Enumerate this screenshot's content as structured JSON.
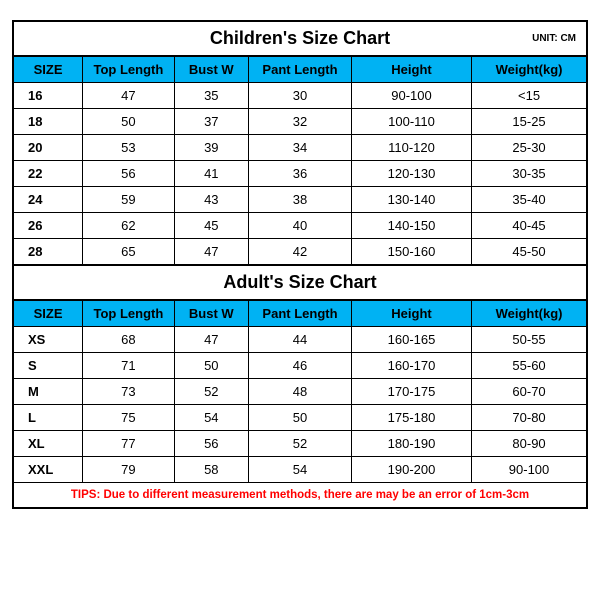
{
  "unit_label": "UNIT: CM",
  "children": {
    "title": "Children's Size Chart",
    "columns": [
      "SIZE",
      "Top Length",
      "Bust W",
      "Pant Length",
      "Height",
      "Weight(kg)"
    ],
    "rows": [
      [
        "16",
        "47",
        "35",
        "30",
        "90-100",
        "<15"
      ],
      [
        "18",
        "50",
        "37",
        "32",
        "100-110",
        "15-25"
      ],
      [
        "20",
        "53",
        "39",
        "34",
        "110-120",
        "25-30"
      ],
      [
        "22",
        "56",
        "41",
        "36",
        "120-130",
        "30-35"
      ],
      [
        "24",
        "59",
        "43",
        "38",
        "130-140",
        "35-40"
      ],
      [
        "26",
        "62",
        "45",
        "40",
        "140-150",
        "40-45"
      ],
      [
        "28",
        "65",
        "47",
        "42",
        "150-160",
        "45-50"
      ]
    ]
  },
  "adult": {
    "title": "Adult's Size Chart",
    "columns": [
      "SIZE",
      "Top Length",
      "Bust W",
      "Pant Length",
      "Height",
      "Weight(kg)"
    ],
    "rows": [
      [
        "XS",
        "68",
        "47",
        "44",
        "160-165",
        "50-55"
      ],
      [
        "S",
        "71",
        "50",
        "46",
        "160-170",
        "55-60"
      ],
      [
        "M",
        "73",
        "52",
        "48",
        "170-175",
        "60-70"
      ],
      [
        "L",
        "75",
        "54",
        "50",
        "175-180",
        "70-80"
      ],
      [
        "XL",
        "77",
        "56",
        "52",
        "180-190",
        "80-90"
      ],
      [
        "XXL",
        "79",
        "58",
        "54",
        "190-200",
        "90-100"
      ]
    ]
  },
  "tips": "TIPS: Due to different measurement methods, there are may be an error of 1cm-3cm",
  "styling": {
    "header_bg": "#00b2f3",
    "border_color": "#000000",
    "tips_color": "#ff0000",
    "font_family": "Arial",
    "title_fontsize": 18,
    "cell_fontsize": 13,
    "unit_fontsize": 10,
    "tips_fontsize": 11.5,
    "col_widths_pct": [
      12,
      16,
      13,
      18,
      21,
      20
    ]
  }
}
